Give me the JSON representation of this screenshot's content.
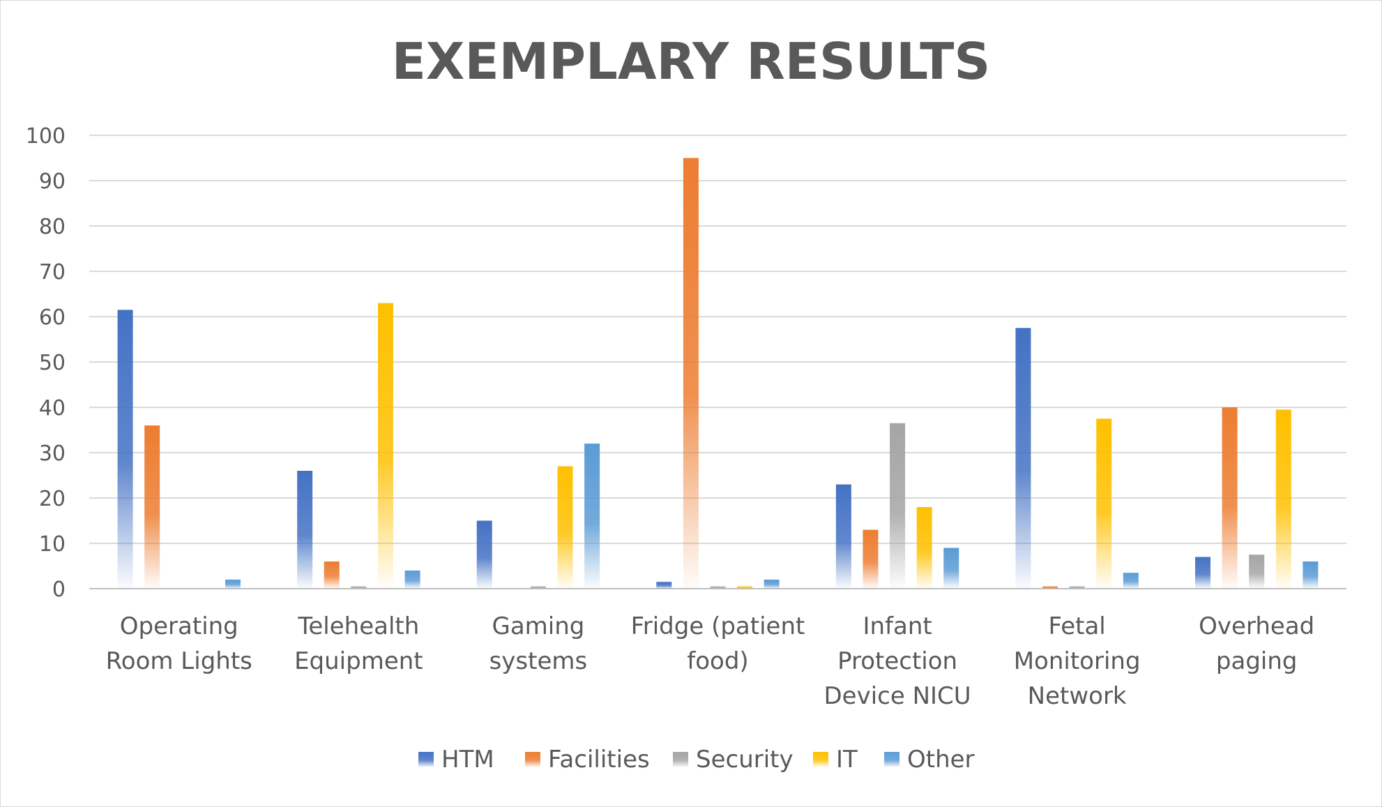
{
  "chart_data": {
    "type": "bar",
    "title": "EXEMPLARY RESULTS",
    "xlabel": "",
    "ylabel": "",
    "ylim": [
      0,
      100
    ],
    "yticks": [
      0,
      10,
      20,
      30,
      40,
      50,
      60,
      70,
      80,
      90,
      100
    ],
    "grid": true,
    "legend_position": "bottom",
    "categories": [
      [
        "Operating",
        "Room Lights"
      ],
      [
        "Telehealth",
        "Equipment"
      ],
      [
        "Gaming",
        "systems"
      ],
      [
        "Fridge (patient",
        "food)"
      ],
      [
        "Infant",
        "Protection",
        "Device NICU"
      ],
      [
        "Fetal",
        "Monitoring",
        "Network"
      ],
      [
        "Overhead",
        "paging"
      ]
    ],
    "series": [
      {
        "name": "HTM",
        "color": "#4472C4",
        "values": [
          61.5,
          26,
          15,
          1.5,
          23,
          57.5,
          7
        ]
      },
      {
        "name": "Facilities",
        "color": "#ED7D31",
        "values": [
          36,
          6,
          0,
          95,
          13,
          0.5,
          40
        ]
      },
      {
        "name": "Security",
        "color": "#A5A5A5",
        "values": [
          0,
          0.5,
          0.5,
          0.5,
          36.5,
          0.5,
          7.5
        ]
      },
      {
        "name": "IT",
        "color": "#FFC000",
        "values": [
          0,
          63,
          27,
          0.5,
          18,
          37.5,
          39.5
        ]
      },
      {
        "name": "Other",
        "color": "#5B9BD5",
        "values": [
          2,
          4,
          32,
          2,
          9,
          3.5,
          6
        ]
      }
    ]
  }
}
